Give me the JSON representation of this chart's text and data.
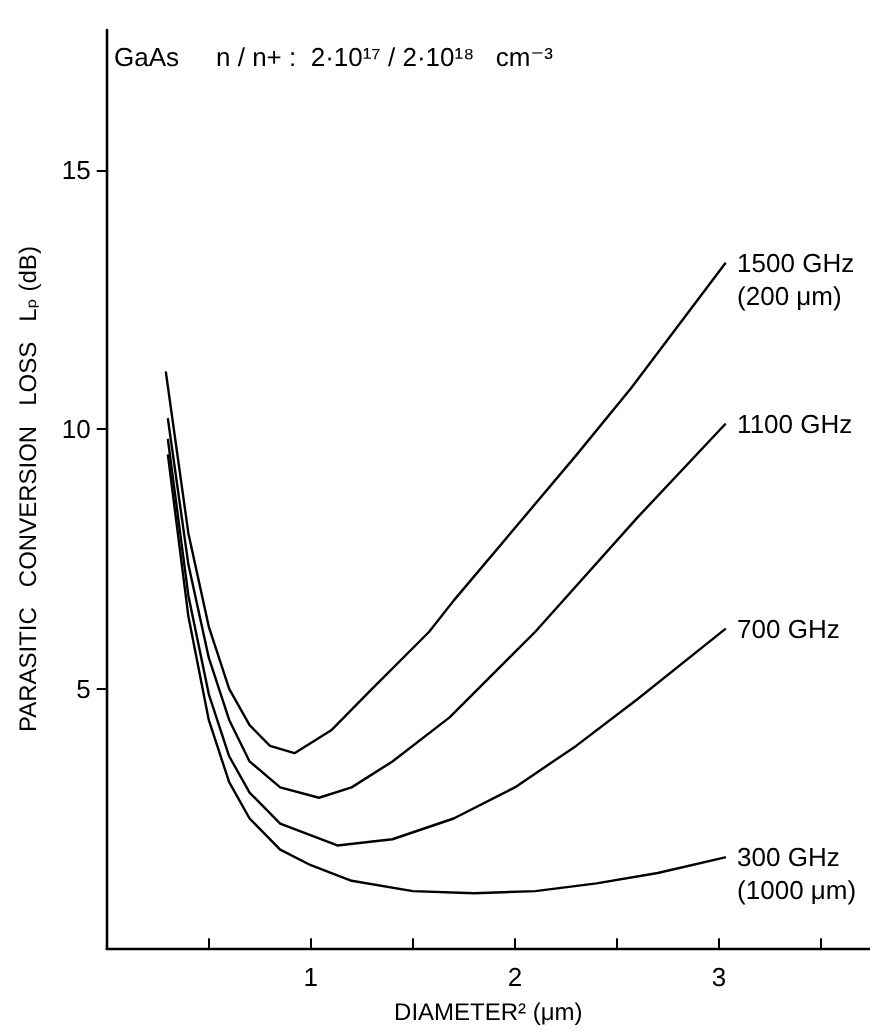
{
  "chart_data": {
    "type": "line",
    "xlabel": "DIAMETER² (μm)",
    "ylabel": "PARASITIC   CONVERSION   LOSS   Lₚ (dB)",
    "annotations": [
      "GaAs",
      "n / n+ :  2·10¹⁷ / 2·10¹⁸   cm⁻³",
      {
        "text": "(200 μm)",
        "x": 3.03,
        "y": 13.2
      },
      {
        "text": "(1000 μm)",
        "x": 3.03,
        "y": 1.75
      }
    ],
    "xlim": [
      0,
      3.74
    ],
    "xticks": [
      {
        "value": 0.5,
        "label": null
      },
      1,
      {
        "value": 1.5,
        "label": null
      },
      2,
      {
        "value": 2.5,
        "label": null
      },
      3,
      {
        "value": 3.5,
        "label": null
      }
    ],
    "ylim": [
      0,
      17.7
    ],
    "yticks": [
      5,
      10,
      15
    ],
    "grid": false,
    "legend": false,
    "marker": "none",
    "line_style": "solid",
    "series": [
      {
        "name": "1500 GHz",
        "color": "#000000",
        "x": [
          0.29,
          0.4,
          0.5,
          0.6,
          0.7,
          0.8,
          0.92,
          1.1,
          1.3,
          1.58,
          1.7,
          2.0,
          2.3,
          2.57,
          3.03
        ],
        "values": [
          11.1,
          8,
          6.2,
          5,
          4.3,
          3.9,
          3.76,
          4.2,
          5,
          6.1,
          6.7,
          8.1,
          9.5,
          10.8,
          13.2
        ]
      },
      {
        "name": "1100 GHz",
        "color": "#000000",
        "x": [
          0.3,
          0.4,
          0.5,
          0.6,
          0.7,
          0.85,
          1.04,
          1.2,
          1.4,
          1.68,
          2.1,
          2.6,
          3.03
        ],
        "values": [
          10.2,
          7.4,
          5.6,
          4.4,
          3.6,
          3.1,
          2.9,
          3.1,
          3.6,
          4.45,
          6.1,
          8.3,
          10.1
        ]
      },
      {
        "name": "700 GHz",
        "color": "#000000",
        "x": [
          0.3,
          0.4,
          0.5,
          0.6,
          0.7,
          0.85,
          1.13,
          1.4,
          1.7,
          2.0,
          2.3,
          2.6,
          3.03
        ],
        "values": [
          9.8,
          6.8,
          4.9,
          3.7,
          3.0,
          2.4,
          1.98,
          2.1,
          2.5,
          3.1,
          3.9,
          4.8,
          6.15
        ]
      },
      {
        "name": "300 GHz",
        "color": "#000000",
        "x": [
          0.3,
          0.4,
          0.5,
          0.6,
          0.7,
          0.85,
          1.0,
          1.2,
          1.5,
          1.8,
          2.1,
          2.4,
          2.7,
          3.03
        ],
        "values": [
          9.5,
          6.4,
          4.4,
          3.2,
          2.5,
          1.9,
          1.6,
          1.3,
          1.1,
          1.06,
          1.1,
          1.25,
          1.45,
          1.75
        ]
      }
    ]
  }
}
